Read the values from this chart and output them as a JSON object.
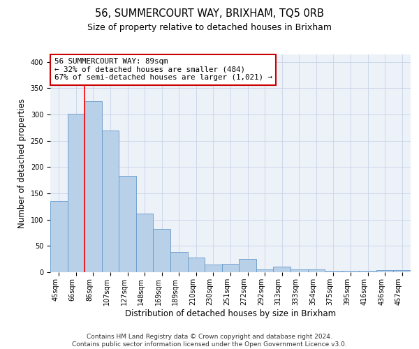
{
  "title": "56, SUMMERCOURT WAY, BRIXHAM, TQ5 0RB",
  "subtitle": "Size of property relative to detached houses in Brixham",
  "xlabel": "Distribution of detached houses by size in Brixham",
  "ylabel": "Number of detached properties",
  "categories": [
    "45sqm",
    "66sqm",
    "86sqm",
    "107sqm",
    "127sqm",
    "148sqm",
    "169sqm",
    "189sqm",
    "210sqm",
    "230sqm",
    "251sqm",
    "272sqm",
    "292sqm",
    "313sqm",
    "333sqm",
    "354sqm",
    "375sqm",
    "395sqm",
    "416sqm",
    "436sqm",
    "457sqm"
  ],
  "values": [
    135,
    302,
    325,
    270,
    183,
    112,
    83,
    38,
    28,
    15,
    16,
    25,
    5,
    10,
    5,
    5,
    2,
    2,
    2,
    4,
    4
  ],
  "bar_color": "#b8d0e8",
  "bar_edge_color": "#6699cc",
  "vline_index": 2,
  "annotation_text": "56 SUMMERCOURT WAY: 89sqm\n← 32% of detached houses are smaller (484)\n67% of semi-detached houses are larger (1,021) →",
  "annotation_box_color": "#ffffff",
  "annotation_box_edge": "#cc0000",
  "ylim": [
    0,
    415
  ],
  "yticks": [
    0,
    50,
    100,
    150,
    200,
    250,
    300,
    350,
    400
  ],
  "grid_color": "#c8d4e8",
  "background_color": "#edf1f8",
  "footer_line1": "Contains HM Land Registry data © Crown copyright and database right 2024.",
  "footer_line2": "Contains public sector information licensed under the Open Government Licence v3.0.",
  "title_fontsize": 10.5,
  "subtitle_fontsize": 9,
  "axis_label_fontsize": 8.5,
  "tick_fontsize": 7,
  "annotation_fontsize": 7.8,
  "footer_fontsize": 6.5
}
